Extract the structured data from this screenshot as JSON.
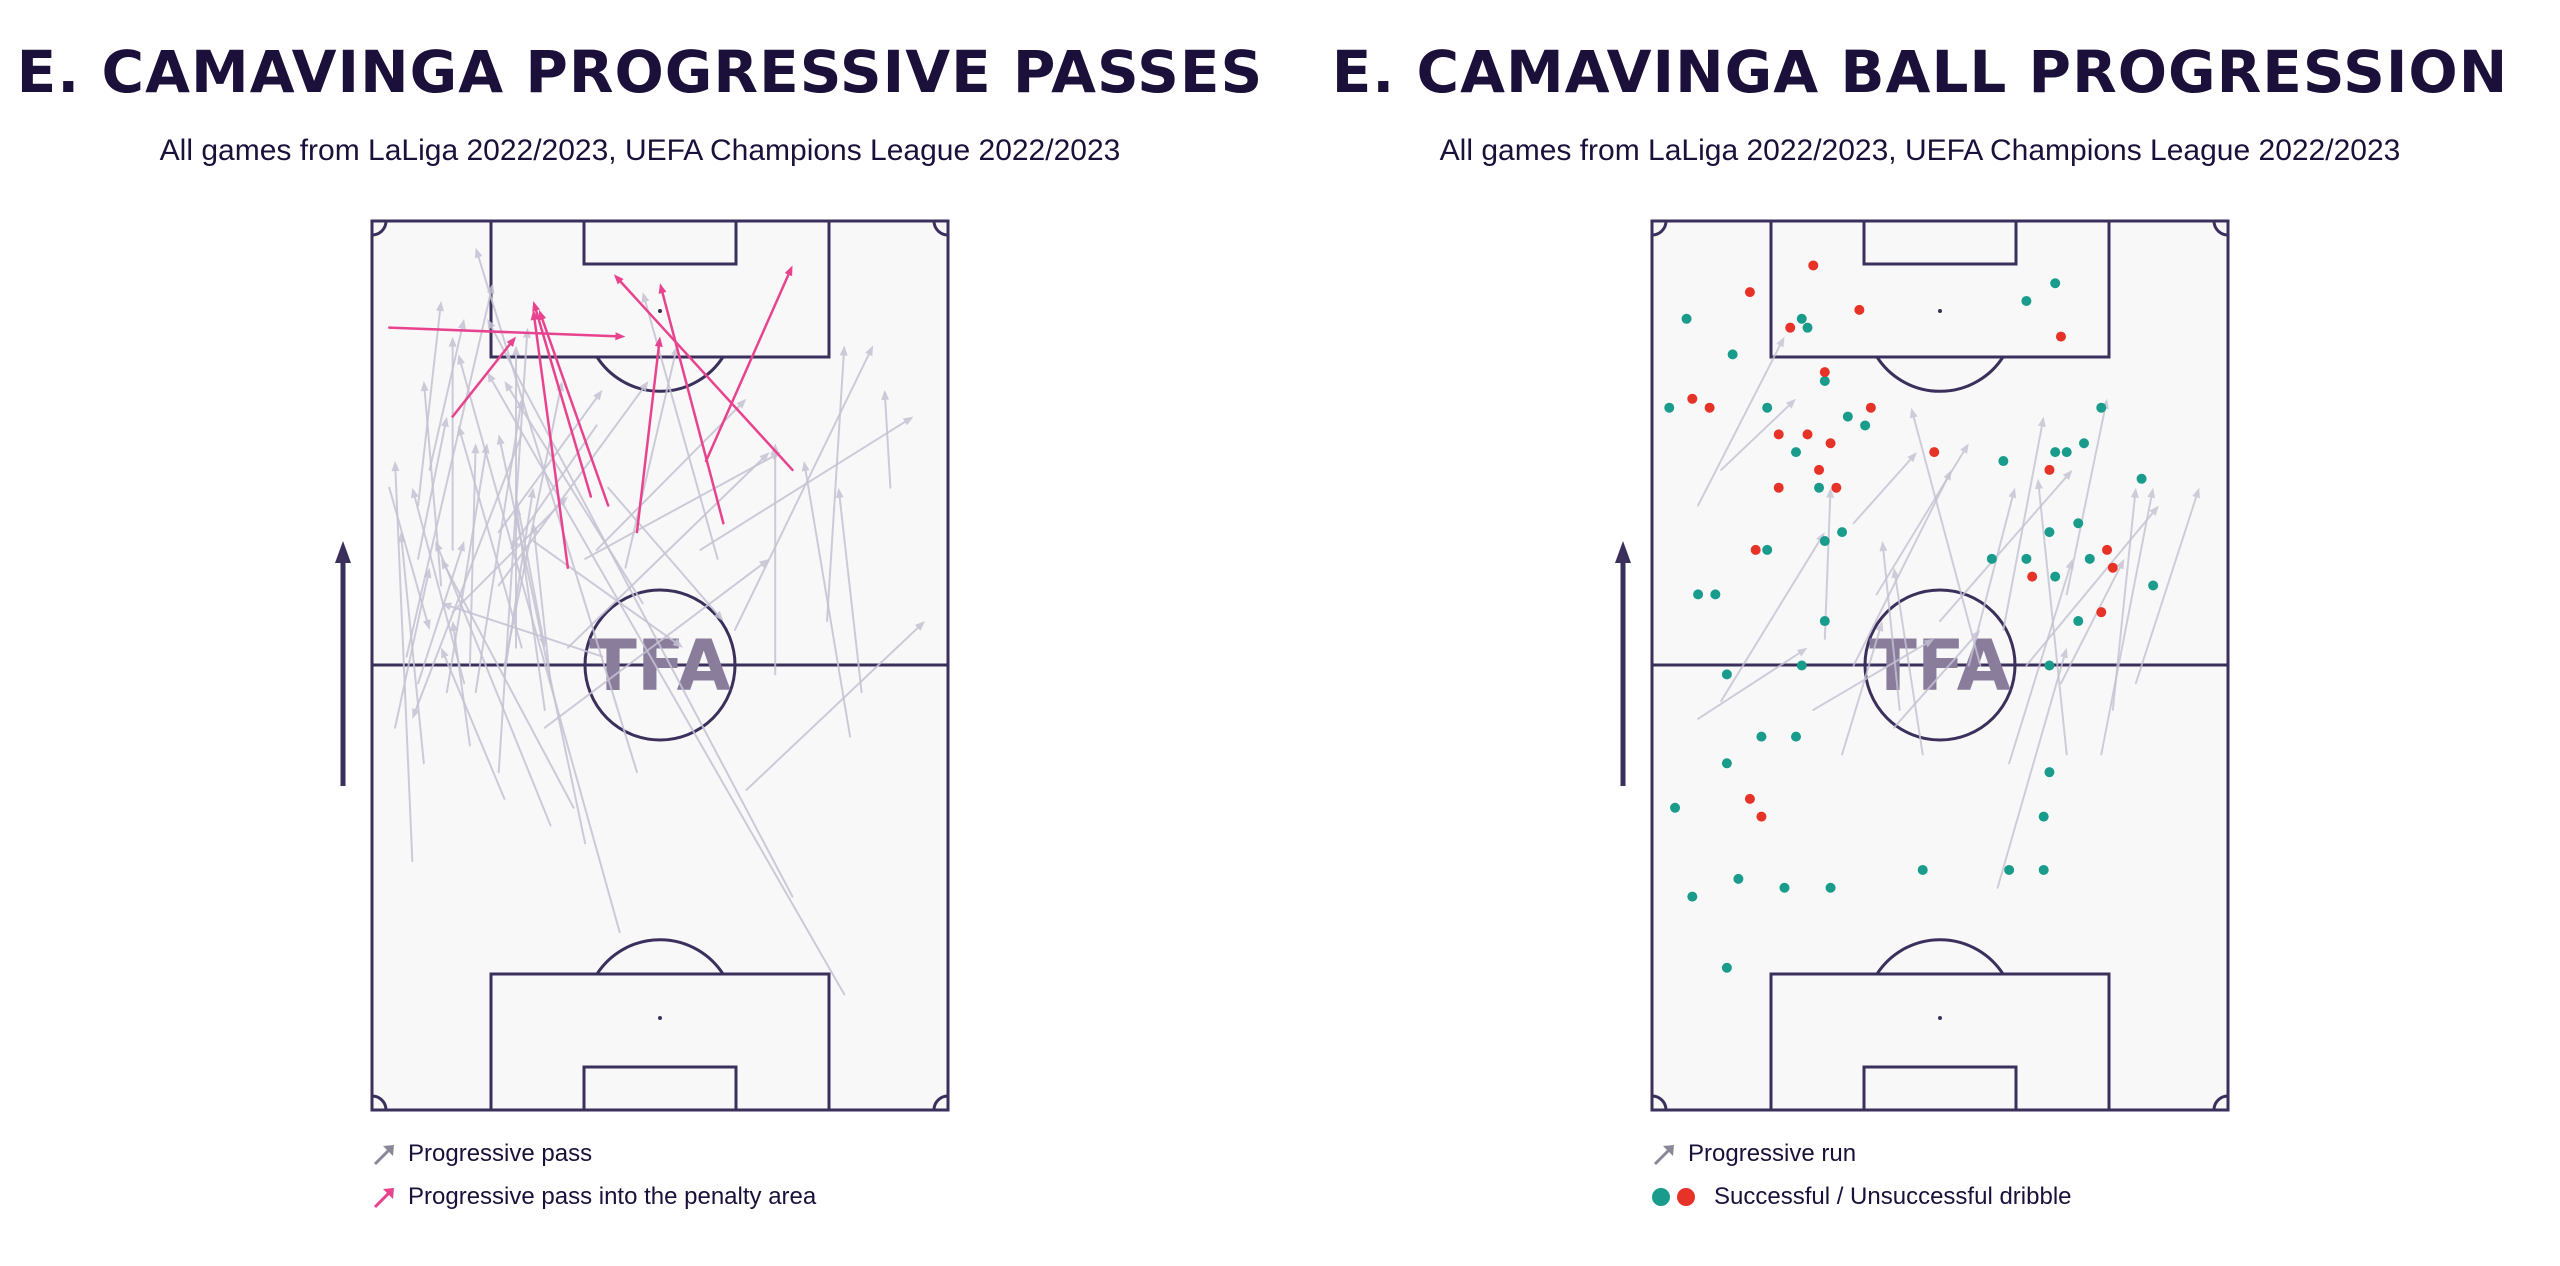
{
  "passes_panel": {
    "title": "E. CAMAVINGA PROGRESSIVE PASSES",
    "subtitle": "All games from LaLiga 2022/2023, UEFA Champions League 2022/2023",
    "watermark": "TFA",
    "legend": [
      {
        "label": "Progressive pass",
        "color": "#8c8699",
        "icon": "arrow-icon"
      },
      {
        "label": "Progressive pass into the penalty area",
        "color": "#e8438f",
        "icon": "arrow-icon"
      }
    ]
  },
  "progression_panel": {
    "title": "E. CAMAVINGA BALL PROGRESSION",
    "subtitle": "All games from LaLiga 2022/2023, UEFA Champions League 2022/2023",
    "watermark": "TFA",
    "legend": [
      {
        "label": "Progressive run",
        "color": "#8c8699",
        "icon": "arrow-icon"
      },
      {
        "label": "Successful / Unsuccessful dribble",
        "colors": [
          "#1a9c8c",
          "#e63227"
        ],
        "icon": "dot-icon"
      }
    ]
  },
  "colors": {
    "pitch_line": "#3b2f5c",
    "pitch_fill": "#f8f8f8",
    "pass": "#c5c2d3",
    "pass_box": "#e8438f",
    "success": "#1a9c8c",
    "fail": "#e63227",
    "attack_arrow": "#3b2f5c"
  },
  "pitch_extent": {
    "x": [
      0,
      100
    ],
    "y": [
      0,
      100
    ],
    "attack_direction": "up"
  },
  "progressive_passes": [
    [
      46,
      38,
      18,
      97
    ],
    [
      73,
      24,
      20,
      89
    ],
    [
      82,
      13,
      20,
      83
    ],
    [
      43,
      20,
      15,
      85
    ],
    [
      17,
      41,
      14,
      55
    ],
    [
      23,
      35,
      12,
      52
    ],
    [
      31,
      32,
      11,
      64
    ],
    [
      26,
      52,
      15,
      77
    ],
    [
      30,
      45,
      25,
      68
    ],
    [
      18,
      47,
      26,
      80
    ],
    [
      60,
      62,
      47,
      92
    ],
    [
      40,
      51,
      12,
      57
    ],
    [
      25,
      52,
      25,
      86
    ],
    [
      14,
      56,
      34,
      69
    ],
    [
      37,
      30,
      22,
      76
    ],
    [
      35,
      34,
      12,
      62
    ],
    [
      79,
      55,
      82,
      86
    ],
    [
      83,
      42,
      75,
      73
    ],
    [
      70,
      49,
      70,
      75
    ],
    [
      65,
      36,
      96,
      55
    ],
    [
      57,
      63,
      94,
      78
    ],
    [
      90,
      70,
      89,
      81
    ],
    [
      85,
      47,
      81,
      70
    ],
    [
      63,
      54,
      87,
      86
    ],
    [
      7,
      28,
      4,
      73
    ],
    [
      3,
      70,
      10,
      54
    ],
    [
      22,
      38,
      27,
      88
    ],
    [
      8,
      62,
      13,
      78
    ],
    [
      25,
      69,
      30,
      52
    ],
    [
      9,
      39,
      5,
      65
    ],
    [
      13,
      47,
      20,
      75
    ],
    [
      12,
      59,
      9,
      82
    ],
    [
      6,
      51,
      21,
      93
    ],
    [
      39,
      77,
      24,
      63
    ],
    [
      28,
      64,
      54,
      52
    ],
    [
      41,
      70,
      61,
      55
    ],
    [
      39,
      63,
      65,
      80
    ],
    [
      26,
      76,
      7,
      44
    ],
    [
      23,
      50,
      33,
      82
    ],
    [
      22,
      59,
      48,
      82
    ],
    [
      44,
      61,
      53,
      86
    ],
    [
      34,
      52,
      69,
      74
    ],
    [
      30,
      43,
      69,
      62
    ],
    [
      37,
      62,
      71,
      74
    ],
    [
      22,
      65,
      40,
      81
    ],
    [
      8,
      68,
      12,
      91
    ],
    [
      10,
      72,
      16,
      89
    ],
    [
      8,
      48,
      16,
      64
    ],
    [
      14,
      63,
      14,
      87
    ],
    [
      23,
      49,
      28,
      70
    ],
    [
      16,
      48,
      7,
      70
    ],
    [
      4,
      43,
      10,
      61
    ],
    [
      17,
      50,
      18,
      75
    ],
    [
      31,
      48,
      28,
      66
    ],
    [
      47,
      57,
      23,
      82
    ]
  ],
  "box_passes": [
    [
      3,
      88,
      44,
      87
    ],
    [
      14,
      78,
      25,
      87
    ],
    [
      38,
      69,
      28,
      91
    ],
    [
      34,
      61,
      28,
      90
    ],
    [
      41,
      68,
      29,
      90
    ],
    [
      73,
      72,
      42,
      94
    ],
    [
      61,
      66,
      50,
      93
    ],
    [
      58,
      73,
      73,
      95
    ],
    [
      46,
      65,
      50,
      87
    ]
  ],
  "progressive_runs": [
    [
      8,
      68,
      23,
      87
    ],
    [
      12,
      72,
      25,
      80
    ],
    [
      28,
      45,
      49,
      53
    ],
    [
      12,
      46,
      30,
      65
    ],
    [
      35,
      50,
      52,
      72
    ],
    [
      42,
      43,
      57,
      54
    ],
    [
      47,
      40,
      42,
      61
    ],
    [
      50,
      55,
      73,
      72
    ],
    [
      65,
      50,
      88,
      68
    ],
    [
      71,
      48,
      82,
      62
    ],
    [
      78,
      40,
      87,
      70
    ],
    [
      84,
      48,
      95,
      70
    ],
    [
      62,
      39,
      73,
      62
    ],
    [
      61,
      54,
      68,
      78
    ],
    [
      72,
      40,
      67,
      71
    ],
    [
      57,
      50,
      45,
      79
    ],
    [
      35,
      66,
      46,
      74
    ],
    [
      33,
      40,
      40,
      55
    ],
    [
      8,
      44,
      27,
      52
    ],
    [
      43,
      45,
      40,
      64
    ],
    [
      60,
      25,
      72,
      52
    ],
    [
      55,
      50,
      63,
      70
    ],
    [
      80,
      45,
      84,
      70
    ],
    [
      72,
      58,
      79,
      80
    ],
    [
      39,
      58,
      55,
      75
    ],
    [
      30,
      53,
      31,
      70
    ]
  ],
  "dribbles_success": [
    [
      6,
      89
    ],
    [
      3,
      79
    ],
    [
      14,
      85
    ],
    [
      26,
      89
    ],
    [
      30,
      82
    ],
    [
      27,
      88
    ],
    [
      20,
      79
    ],
    [
      25,
      74
    ],
    [
      34,
      78
    ],
    [
      37,
      77
    ],
    [
      29,
      70
    ],
    [
      30,
      64
    ],
    [
      20,
      63
    ],
    [
      33,
      65
    ],
    [
      30,
      55
    ],
    [
      11,
      58
    ],
    [
      8,
      58
    ],
    [
      13,
      49
    ],
    [
      19,
      42
    ],
    [
      25,
      42
    ],
    [
      13,
      39
    ],
    [
      26,
      50
    ],
    [
      4,
      34
    ],
    [
      7,
      24
    ],
    [
      15,
      26
    ],
    [
      23,
      25
    ],
    [
      31,
      25
    ],
    [
      13,
      16
    ],
    [
      47,
      27
    ],
    [
      62,
      27
    ],
    [
      68,
      27
    ],
    [
      68,
      33
    ],
    [
      69,
      38
    ],
    [
      69,
      50
    ],
    [
      74,
      55
    ],
    [
      70,
      60
    ],
    [
      69,
      65
    ],
    [
      72,
      74
    ],
    [
      75,
      75
    ],
    [
      78,
      79
    ],
    [
      70,
      74
    ],
    [
      59,
      62
    ],
    [
      65,
      62
    ],
    [
      85,
      71
    ],
    [
      76,
      62
    ],
    [
      87,
      59
    ],
    [
      65,
      91
    ],
    [
      70,
      93
    ],
    [
      61,
      73
    ],
    [
      74,
      66
    ]
  ],
  "dribbles_fail": [
    [
      17,
      92
    ],
    [
      28,
      95
    ],
    [
      24,
      88
    ],
    [
      36,
      90
    ],
    [
      30,
      83
    ],
    [
      27,
      76
    ],
    [
      38,
      79
    ],
    [
      22,
      76
    ],
    [
      31,
      75
    ],
    [
      22,
      70
    ],
    [
      29,
      72
    ],
    [
      32,
      70
    ],
    [
      18,
      63
    ],
    [
      49,
      74
    ],
    [
      69,
      72
    ],
    [
      71,
      87
    ],
    [
      79,
      63
    ],
    [
      80,
      61
    ],
    [
      66,
      60
    ],
    [
      78,
      56
    ],
    [
      17,
      35
    ],
    [
      19,
      33
    ],
    [
      7,
      80
    ],
    [
      10,
      79
    ]
  ]
}
